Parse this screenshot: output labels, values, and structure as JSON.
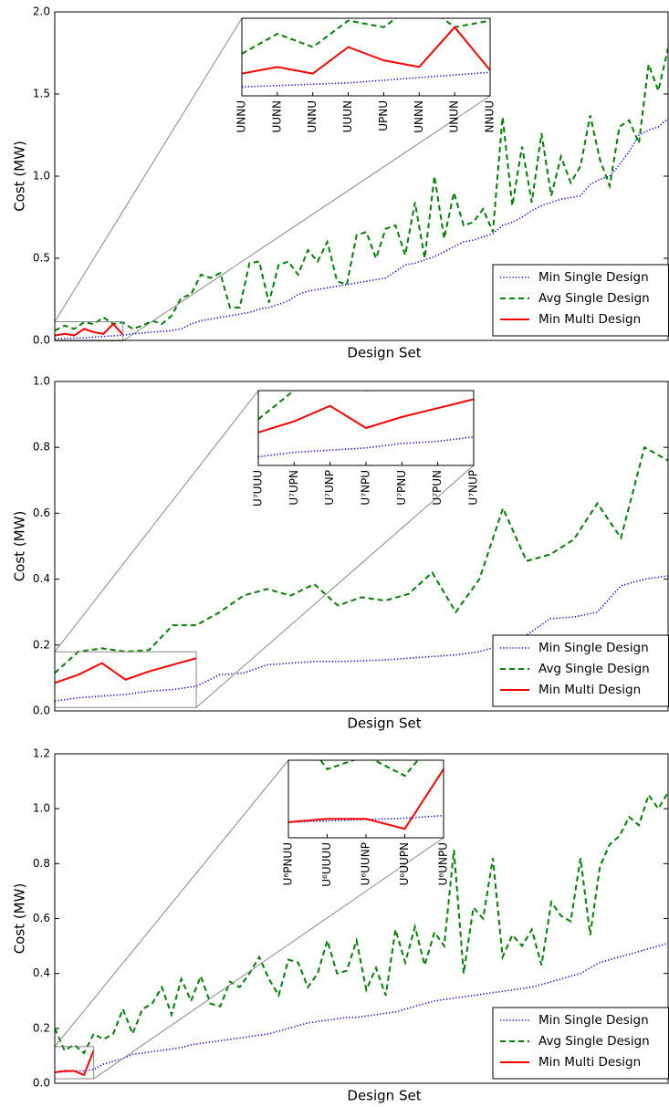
{
  "chart_data": [
    {
      "type": "line",
      "ylabel": "Cost (MW)",
      "xlabel": "Design Set",
      "ylim": [
        0,
        2
      ],
      "yticks": [
        {
          "value": 0,
          "label": "0.0"
        },
        0.5,
        {
          "value": 1,
          "label": "1.0"
        },
        1.5,
        {
          "value": 2,
          "label": "2.0"
        }
      ],
      "legend": "lower right",
      "inset": {
        "categories": [
          "UNNU",
          "UUNN",
          "UNNU",
          "UUUN",
          "UPNU",
          "UNNN",
          "UNUN",
          "NNUU"
        ]
      },
      "series": [
        {
          "name": "Min Single Design",
          "color": "#0000ff",
          "linestyle": "dotted",
          "values": [
            0.01,
            0.012,
            0.014,
            0.016,
            0.02,
            0.024,
            0.028,
            0.032,
            0.04,
            0.045,
            0.05,
            0.055,
            0.06,
            0.07,
            0.1,
            0.12,
            0.13,
            0.14,
            0.15,
            0.16,
            0.17,
            0.19,
            0.2,
            0.22,
            0.24,
            0.28,
            0.3,
            0.31,
            0.32,
            0.33,
            0.34,
            0.35,
            0.36,
            0.37,
            0.38,
            0.42,
            0.46,
            0.47,
            0.49,
            0.51,
            0.54,
            0.57,
            0.6,
            0.61,
            0.63,
            0.65,
            0.7,
            0.72,
            0.75,
            0.79,
            0.82,
            0.84,
            0.86,
            0.87,
            0.88,
            0.95,
            0.98,
            1.0,
            1.07,
            1.15,
            1.25,
            1.28,
            1.3,
            1.35
          ]
        },
        {
          "name": "Avg Single Design",
          "color": "#008000",
          "linestyle": "dashed",
          "values": [
            0.06,
            0.09,
            0.07,
            0.11,
            0.1,
            0.14,
            0.1,
            0.11,
            0.07,
            0.09,
            0.12,
            0.1,
            0.15,
            0.26,
            0.28,
            0.4,
            0.38,
            0.41,
            0.2,
            0.2,
            0.47,
            0.48,
            0.23,
            0.46,
            0.48,
            0.4,
            0.55,
            0.48,
            0.6,
            0.36,
            0.34,
            0.64,
            0.66,
            0.5,
            0.68,
            0.7,
            0.52,
            0.84,
            0.5,
            1.0,
            0.62,
            0.9,
            0.7,
            0.72,
            0.8,
            0.66,
            1.36,
            0.82,
            1.18,
            0.84,
            1.26,
            0.88,
            1.12,
            0.96,
            1.06,
            1.37,
            1.1,
            0.94,
            1.3,
            1.34,
            1.2,
            1.68,
            1.52,
            1.78
          ]
        },
        {
          "name": "Min Multi Design",
          "color": "#ff0000",
          "linestyle": "solid",
          "values": [
            0.03,
            0.04,
            0.03,
            0.07,
            0.05,
            0.04,
            0.1,
            0.035,
            null,
            null,
            null,
            null,
            null,
            null,
            null,
            null,
            null,
            null,
            null,
            null,
            null,
            null,
            null,
            null,
            null,
            null,
            null,
            null,
            null,
            null,
            null,
            null,
            null,
            null,
            null,
            null,
            null,
            null,
            null,
            null,
            null,
            null,
            null,
            null,
            null,
            null,
            null,
            null,
            null,
            null,
            null,
            null,
            null,
            null,
            null,
            null,
            null,
            null,
            null,
            null,
            null,
            null,
            null,
            null
          ]
        }
      ]
    },
    {
      "type": "line",
      "ylabel": "Cost (MW)",
      "xlabel": "Design Set",
      "ylim": [
        0,
        1
      ],
      "yticks": [
        {
          "value": 0,
          "label": "0.0"
        },
        0.2,
        0.4,
        0.6,
        0.8,
        {
          "value": 1,
          "label": "1.0"
        }
      ],
      "legend": "lower right",
      "inset": {
        "categories": [
          "U⁷UUU",
          "U⁷UPN",
          "U⁷UNP",
          "U⁷NPU",
          "U⁷PNU",
          "U⁷PUN",
          "U⁷NUP"
        ]
      },
      "series": [
        {
          "name": "Min Single Design",
          "color": "#0000ff",
          "linestyle": "dotted",
          "values": [
            0.03,
            0.04,
            0.045,
            0.05,
            0.06,
            0.065,
            0.075,
            0.11,
            0.115,
            0.14,
            0.145,
            0.15,
            0.15,
            0.152,
            0.155,
            0.16,
            0.165,
            0.17,
            0.18,
            0.2,
            0.23,
            0.28,
            0.285,
            0.3,
            0.38,
            0.4,
            0.41
          ]
        },
        {
          "name": "Avg Single Design",
          "color": "#008000",
          "linestyle": "dashed",
          "values": [
            0.115,
            0.18,
            0.19,
            0.18,
            0.185,
            0.26,
            0.26,
            0.3,
            0.35,
            0.37,
            0.35,
            0.385,
            0.32,
            0.345,
            0.335,
            0.355,
            0.42,
            0.3,
            0.4,
            0.615,
            0.455,
            0.475,
            0.52,
            0.63,
            0.525,
            0.8,
            0.76
          ]
        },
        {
          "name": "Min Multi Design",
          "color": "#ff0000",
          "linestyle": "solid",
          "values": [
            0.085,
            0.11,
            0.145,
            0.095,
            0.12,
            0.14,
            0.16,
            null,
            null,
            null,
            null,
            null,
            null,
            null,
            null,
            null,
            null,
            null,
            null,
            null,
            null,
            null,
            null,
            null,
            null,
            null,
            null
          ]
        }
      ]
    },
    {
      "type": "line",
      "ylabel": "Cost (MW)",
      "xlabel": "Design Set",
      "ylim": [
        0,
        1.2
      ],
      "yticks": [
        {
          "value": 0,
          "label": "0.0"
        },
        0.2,
        0.4,
        0.6,
        0.8,
        {
          "value": 1,
          "label": "1.0"
        },
        1.2
      ],
      "legend": "lower right",
      "inset": {
        "categories": [
          "U⁶PNUU",
          "U⁶UUUU",
          "U⁶UUNP",
          "U⁶UUPN",
          "U⁶UNPU"
        ]
      },
      "series": [
        {
          "name": "Min Single Design",
          "color": "#0000ff",
          "linestyle": "dotted",
          "values": [
            0.04,
            0.042,
            0.044,
            0.046,
            0.05,
            0.07,
            0.08,
            0.09,
            0.105,
            0.11,
            0.115,
            0.12,
            0.125,
            0.13,
            0.14,
            0.145,
            0.15,
            0.155,
            0.16,
            0.165,
            0.17,
            0.175,
            0.18,
            0.19,
            0.2,
            0.21,
            0.22,
            0.225,
            0.23,
            0.235,
            0.24,
            0.24,
            0.245,
            0.25,
            0.255,
            0.26,
            0.27,
            0.28,
            0.29,
            0.3,
            0.305,
            0.31,
            0.315,
            0.32,
            0.325,
            0.33,
            0.335,
            0.34,
            0.345,
            0.35,
            0.36,
            0.37,
            0.38,
            0.39,
            0.4,
            0.42,
            0.44,
            0.45,
            0.46,
            0.47,
            0.48,
            0.49,
            0.5,
            0.51
          ]
        },
        {
          "name": "Avg Single Design",
          "color": "#008000",
          "linestyle": "dashed",
          "values": [
            0.2,
            0.12,
            0.14,
            0.11,
            0.18,
            0.16,
            0.18,
            0.27,
            0.18,
            0.27,
            0.29,
            0.35,
            0.25,
            0.38,
            0.3,
            0.39,
            0.29,
            0.28,
            0.37,
            0.35,
            0.4,
            0.46,
            0.38,
            0.32,
            0.45,
            0.44,
            0.35,
            0.4,
            0.52,
            0.4,
            0.41,
            0.52,
            0.34,
            0.42,
            0.32,
            0.56,
            0.44,
            0.57,
            0.43,
            0.55,
            0.5,
            0.85,
            0.4,
            0.64,
            0.6,
            0.82,
            0.46,
            0.54,
            0.5,
            0.56,
            0.43,
            0.66,
            0.61,
            0.59,
            0.82,
            0.54,
            0.79,
            0.87,
            0.9,
            0.97,
            0.94,
            1.05,
            1.0,
            1.06
          ]
        },
        {
          "name": "Min Multi Design",
          "color": "#ff0000",
          "linestyle": "solid",
          "values": [
            0.04,
            0.045,
            0.045,
            0.03,
            0.12,
            null,
            null,
            null,
            null,
            null,
            null,
            null,
            null,
            null,
            null,
            null,
            null,
            null,
            null,
            null,
            null,
            null,
            null,
            null,
            null,
            null,
            null,
            null,
            null,
            null,
            null,
            null,
            null,
            null,
            null,
            null,
            null,
            null,
            null,
            null,
            null,
            null,
            null,
            null,
            null,
            null,
            null,
            null,
            null,
            null,
            null,
            null,
            null,
            null,
            null,
            null,
            null,
            null,
            null,
            null,
            null,
            null,
            null,
            null
          ]
        }
      ]
    }
  ]
}
